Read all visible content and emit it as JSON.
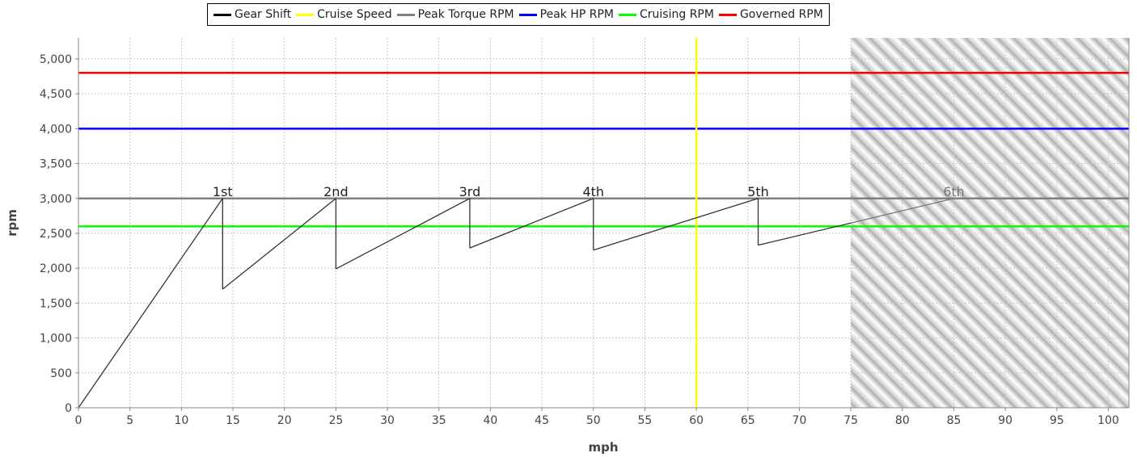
{
  "chart_data": {
    "type": "line",
    "xlabel": "mph",
    "ylabel": "rpm",
    "xlim": [
      0,
      102
    ],
    "ylim": [
      0,
      5300
    ],
    "x_ticks": [
      0,
      5,
      10,
      15,
      20,
      25,
      30,
      35,
      40,
      45,
      50,
      55,
      60,
      65,
      70,
      75,
      80,
      85,
      90,
      95,
      100
    ],
    "y_ticks": [
      0,
      500,
      1000,
      1500,
      2000,
      2500,
      3000,
      3500,
      4000,
      4500,
      5000
    ],
    "grid": true,
    "legend_position": "top",
    "legend": [
      {
        "name": "Gear Shift",
        "color": "#000000"
      },
      {
        "name": "Cruise Speed",
        "color": "#ffff00"
      },
      {
        "name": "Peak Torque RPM",
        "color": "#808080"
      },
      {
        "name": "Peak HP RPM",
        "color": "#0000ff"
      },
      {
        "name": "Cruising RPM",
        "color": "#00ff00"
      },
      {
        "name": "Governed RPM",
        "color": "#ff0000"
      }
    ],
    "horizontal_lines": [
      {
        "name": "Governed RPM",
        "y": 4800,
        "color": "#ff0000"
      },
      {
        "name": "Peak HP RPM",
        "y": 4000,
        "color": "#0000ff"
      },
      {
        "name": "Peak Torque RPM",
        "y": 3000,
        "color": "#808080"
      },
      {
        "name": "Cruising RPM",
        "y": 2600,
        "color": "#00ff00"
      }
    ],
    "vertical_lines": [
      {
        "name": "Cruise Speed",
        "x": 60,
        "color": "#ffff00"
      }
    ],
    "shaded_region": {
      "x_start": 75,
      "x_end": 102
    },
    "gear_shift": {
      "name": "Gear Shift",
      "color": "#000000",
      "points": [
        [
          0,
          0
        ],
        [
          14,
          3000
        ],
        [
          14,
          1700
        ],
        [
          25,
          3000
        ],
        [
          25,
          1990
        ],
        [
          38,
          3000
        ],
        [
          38,
          2290
        ],
        [
          50,
          3000
        ],
        [
          50,
          2260
        ],
        [
          66,
          3000
        ],
        [
          66,
          2330
        ],
        [
          85,
          3000
        ]
      ]
    },
    "gear_labels": [
      {
        "label": "1st",
        "x": 14,
        "y": 3000
      },
      {
        "label": "2nd",
        "x": 25,
        "y": 3000
      },
      {
        "label": "3rd",
        "x": 38,
        "y": 3000
      },
      {
        "label": "4th",
        "x": 50,
        "y": 3000
      },
      {
        "label": "5th",
        "x": 66,
        "y": 3000
      },
      {
        "label": "6th",
        "x": 85,
        "y": 3000
      }
    ]
  }
}
